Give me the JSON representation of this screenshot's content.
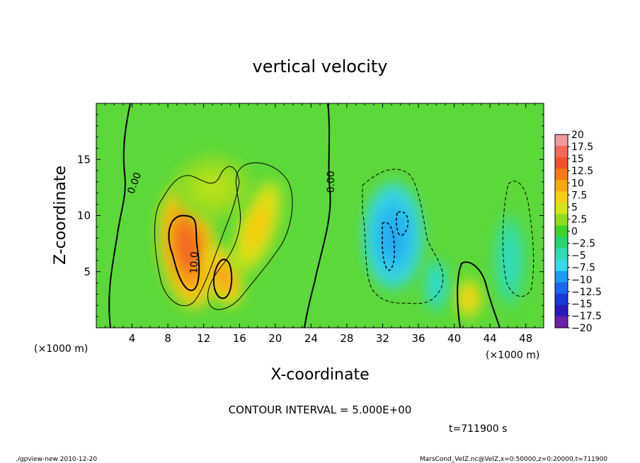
{
  "chart_data": {
    "type": "heatmap",
    "title": "vertical velocity",
    "xlabel": "X-coordinate",
    "ylabel": "Z-coordinate",
    "x_unit": "(×1000 m)",
    "y_unit": "(×1000 m)",
    "x_ticks": [
      4,
      8,
      12,
      16,
      20,
      24,
      28,
      32,
      36,
      40,
      44,
      48
    ],
    "y_ticks": [
      5,
      10,
      15
    ],
    "xlim": [
      0,
      50
    ],
    "ylim": [
      0,
      20
    ],
    "contour_labels": [
      {
        "text": "0.00",
        "x": 4.6,
        "y": 12.8,
        "angle": -70
      },
      {
        "text": "0.00",
        "x": 26.6,
        "y": 13.0,
        "angle": -90
      },
      {
        "text": "10.0",
        "x": 11.3,
        "y": 5.8,
        "angle": -88
      }
    ],
    "contour_interval_text": "CONTOUR INTERVAL = 5.000E+00",
    "time_text": "t=711900 s",
    "colorbar": {
      "ticks": [
        "20",
        "17.5",
        "15",
        "12.5",
        "10",
        "7.5",
        "5",
        "2.5",
        "0",
        "−2.5",
        "−5",
        "−7.5",
        "−10",
        "−12.5",
        "−15",
        "−17.5",
        "−20"
      ],
      "colors": [
        "#f59a9a",
        "#f26a5a",
        "#f0502a",
        "#f57a18",
        "#f8a810",
        "#f8cf12",
        "#d6e418",
        "#8fdc22",
        "#3fd22a",
        "#28d46e",
        "#30dcb4",
        "#38d8e8",
        "#1e9cf2",
        "#1a68ea",
        "#1838d8",
        "#2a18b8",
        "#6a20a8"
      ]
    },
    "features": [
      {
        "cx": 10.2,
        "cy": 7.2,
        "rx": 3.2,
        "ry": 5.6,
        "rot": -8,
        "v": 14
      },
      {
        "cx": 14.2,
        "cy": 4.6,
        "rx": 2.0,
        "ry": 2.8,
        "rot": -20,
        "v": 11
      },
      {
        "cx": 18.0,
        "cy": 9.0,
        "rx": 2.2,
        "ry": 4.5,
        "rot": 20,
        "v": 8
      },
      {
        "cx": 13.0,
        "cy": 12.5,
        "rx": 4.5,
        "ry": 3.0,
        "rot": 0,
        "v": 4
      },
      {
        "cx": 41.6,
        "cy": 2.6,
        "rx": 1.6,
        "ry": 1.8,
        "rot": 0,
        "v": 8
      },
      {
        "cx": 33.2,
        "cy": 8.2,
        "rx": 3.4,
        "ry": 4.8,
        "rot": 0,
        "v": -9
      },
      {
        "cx": 38.0,
        "cy": 3.8,
        "rx": 1.4,
        "ry": 2.4,
        "rot": 0,
        "v": -4
      },
      {
        "cx": 46.2,
        "cy": 6.0,
        "rx": 1.8,
        "ry": 4.2,
        "rot": 0,
        "v": -3
      }
    ]
  },
  "footer": {
    "left": "./gpview-new  2010-12-20",
    "right": "MarsCond_VelZ.nc@VelZ,x=0:50000,z=0:20000,t=711900"
  }
}
